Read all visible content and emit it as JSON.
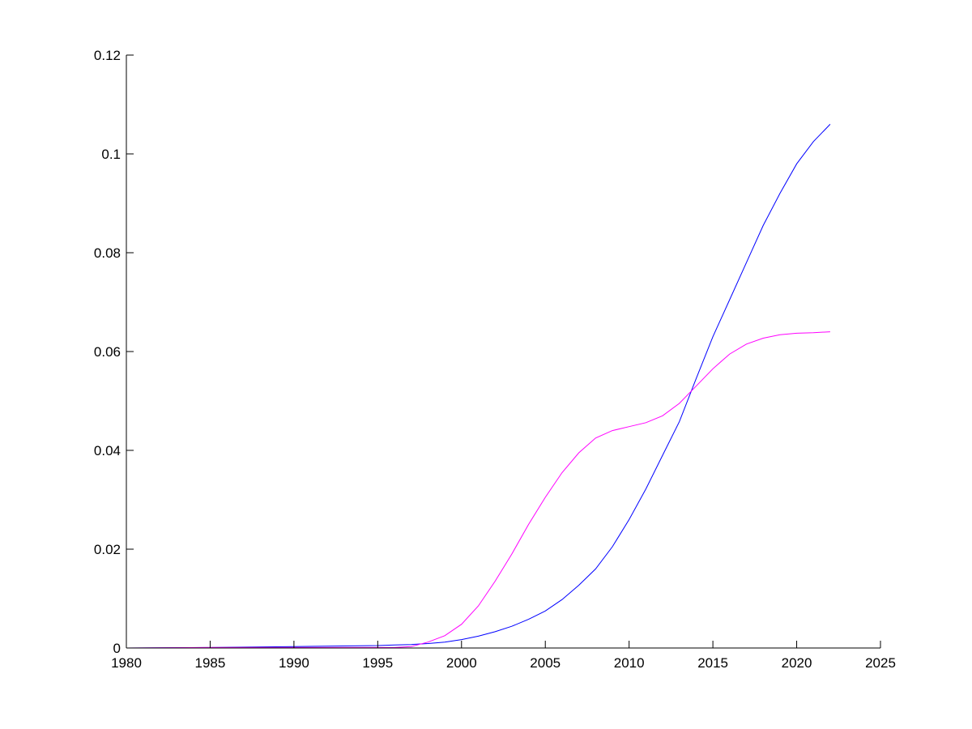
{
  "chart_data": {
    "type": "line",
    "title": "",
    "xlabel": "",
    "ylabel": "",
    "xlim": [
      1980,
      2025
    ],
    "ylim": [
      0,
      0.12
    ],
    "xticks": [
      "1980",
      "1985",
      "1990",
      "1995",
      "2000",
      "2005",
      "2010",
      "2015",
      "2020",
      "2025"
    ],
    "yticks": [
      "0",
      "0.02",
      "0.04",
      "0.06",
      "0.08",
      "0.1",
      "0.12"
    ],
    "grid": false,
    "legend": "none",
    "x": [
      1980,
      1985,
      1990,
      1995,
      1996,
      1997,
      1998,
      1999,
      2000,
      2001,
      2002,
      2003,
      2004,
      2005,
      2006,
      2007,
      2008,
      2009,
      2010,
      2011,
      2012,
      2013,
      2014,
      2015,
      2016,
      2017,
      2018,
      2019,
      2020,
      2021,
      2022
    ],
    "series": [
      {
        "color": "#0000ff",
        "values": [
          0,
          0.0001,
          0.0003,
          0.0005,
          0.0006,
          0.0007,
          0.0009,
          0.0012,
          0.0017,
          0.0024,
          0.0033,
          0.0044,
          0.0058,
          0.0075,
          0.0098,
          0.0127,
          0.016,
          0.0205,
          0.026,
          0.0322,
          0.039,
          0.0458,
          0.0545,
          0.063,
          0.0705,
          0.078,
          0.0855,
          0.092,
          0.098,
          0.1025,
          0.106
        ]
      },
      {
        "color": "#ff00ff",
        "values": [
          0,
          0.0001,
          0.0001,
          0.0001,
          0.0001,
          0.0003,
          0.0012,
          0.0025,
          0.0048,
          0.0085,
          0.0135,
          0.019,
          0.025,
          0.0305,
          0.0355,
          0.0395,
          0.0425,
          0.044,
          0.0448,
          0.0456,
          0.047,
          0.0495,
          0.053,
          0.0565,
          0.0595,
          0.0615,
          0.0627,
          0.0634,
          0.0637,
          0.0638,
          0.064
        ]
      }
    ]
  }
}
